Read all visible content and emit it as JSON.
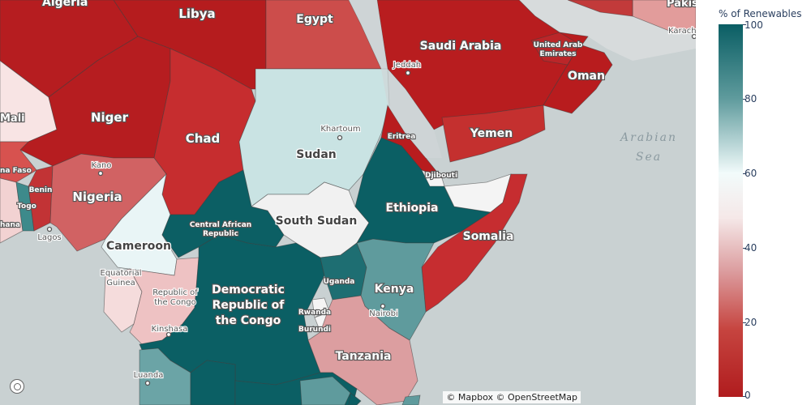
{
  "legend": {
    "title": "% of Renewables",
    "ticks": [
      "100",
      "80",
      "60",
      "40",
      "20",
      "0"
    ],
    "colorscale": [
      "#b01c1e",
      "#c6443f",
      "#dc9ea0",
      "#f5e8e8",
      "#f2fbfb",
      "#5f9b9d",
      "#0a5e64"
    ]
  },
  "countries": {
    "algeria": "Algeria",
    "libya": "Libya",
    "egypt": "Egypt",
    "saudi": "Saudi Arabia",
    "uae": "United Arab Emirates",
    "oman": "Oman",
    "pakistan": "Pakis",
    "mali": "Mali",
    "niger": "Niger",
    "chad": "Chad",
    "sudan": "Sudan",
    "eritrea": "Eritrea",
    "yemen": "Yemen",
    "djibouti": "Djibouti",
    "burkina": "Burkina Faso",
    "benin": "Benin",
    "togo": "Togo",
    "ghana": "Ghana",
    "nigeria": "Nigeria",
    "ethiopia": "Ethiopia",
    "south_sudan": "South Sudan",
    "car": "Central African Republic",
    "somalia": "Somalia",
    "cameroon": "Cameroon",
    "eq_guinea": "Equatorial Guinea",
    "congo": "Republic of the Congo",
    "drc": "Democratic Republic of the Congo",
    "uganda": "Uganda",
    "kenya": "Kenya",
    "rwanda": "Rwanda",
    "burundi": "Burundi",
    "tanzania": "Tanzania"
  },
  "cities": {
    "jeddah": "Jeddah",
    "karachi": "Karach",
    "khartoum": "Khartoum",
    "kano": "Kano",
    "lagos": "Lagos",
    "nairobi": "Nairobi",
    "kinshasa": "Kinshasa",
    "luanda": "Luanda"
  },
  "seas": {
    "arabian": "Arabian Sea"
  },
  "attribution": "© Mapbox © OpenStreetMap",
  "renewables_share": {
    "Algeria": 1,
    "Libya": 0,
    "Egypt": 12,
    "Saudi Arabia": 0,
    "United Arab Emirates": 2,
    "Oman": 0,
    "Mali": 45,
    "Niger": 8,
    "Chad": 5,
    "Sudan": 62,
    "Eritrea": 3,
    "Yemen": 8,
    "Djibouti": 55,
    "Nigeria": 18,
    "Cameroon": 58,
    "Central African Republic": 98,
    "South Sudan": 52,
    "Ethiopia": 99,
    "Somalia": 7,
    "Equatorial Guinea": 35,
    "Republic of the Congo": 35,
    "Democratic Republic of the Congo": 98,
    "Uganda": 92,
    "Kenya": 80,
    "Tanzania": 30,
    "Rwanda": 50
  }
}
